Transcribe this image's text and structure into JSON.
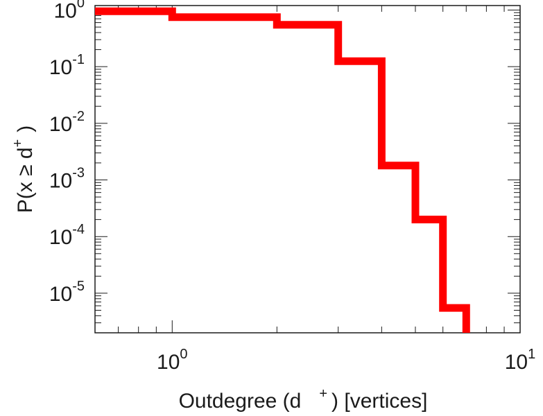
{
  "chart_data": {
    "type": "line",
    "title": "",
    "xlabel": "Outdegree (d",
    "xlabel_sup": "+",
    "xlabel_suffix": ") [vertices]",
    "ylabel": "P(x ≥ d",
    "ylabel_sup": "+",
    "ylabel_suffix": ")",
    "x_scale": "log",
    "y_scale": "log",
    "xlim": [
      0.6,
      10
    ],
    "ylim": [
      2e-06,
      1.2
    ],
    "grid": false,
    "x_ticks": [
      {
        "value": 1,
        "base": "10",
        "exp": "0"
      },
      {
        "value": 10,
        "base": "10",
        "exp": "1"
      }
    ],
    "y_ticks": [
      {
        "value": 1,
        "base": "10",
        "exp": "0"
      },
      {
        "value": 0.1,
        "base": "10",
        "exp": "-1"
      },
      {
        "value": 0.01,
        "base": "10",
        "exp": "-2"
      },
      {
        "value": 0.001,
        "base": "10",
        "exp": "-3"
      },
      {
        "value": 0.0001,
        "base": "10",
        "exp": "-4"
      },
      {
        "value": 1e-05,
        "base": "10",
        "exp": "-5"
      }
    ],
    "series": [
      {
        "color": "#ff0000",
        "style": "step",
        "x": [
          0.6,
          1,
          2,
          3,
          4,
          5,
          6,
          7
        ],
        "y": [
          0.95,
          0.75,
          0.55,
          0.125,
          0.0018,
          0.0002,
          5.5e-06,
          2e-06
        ]
      }
    ]
  }
}
